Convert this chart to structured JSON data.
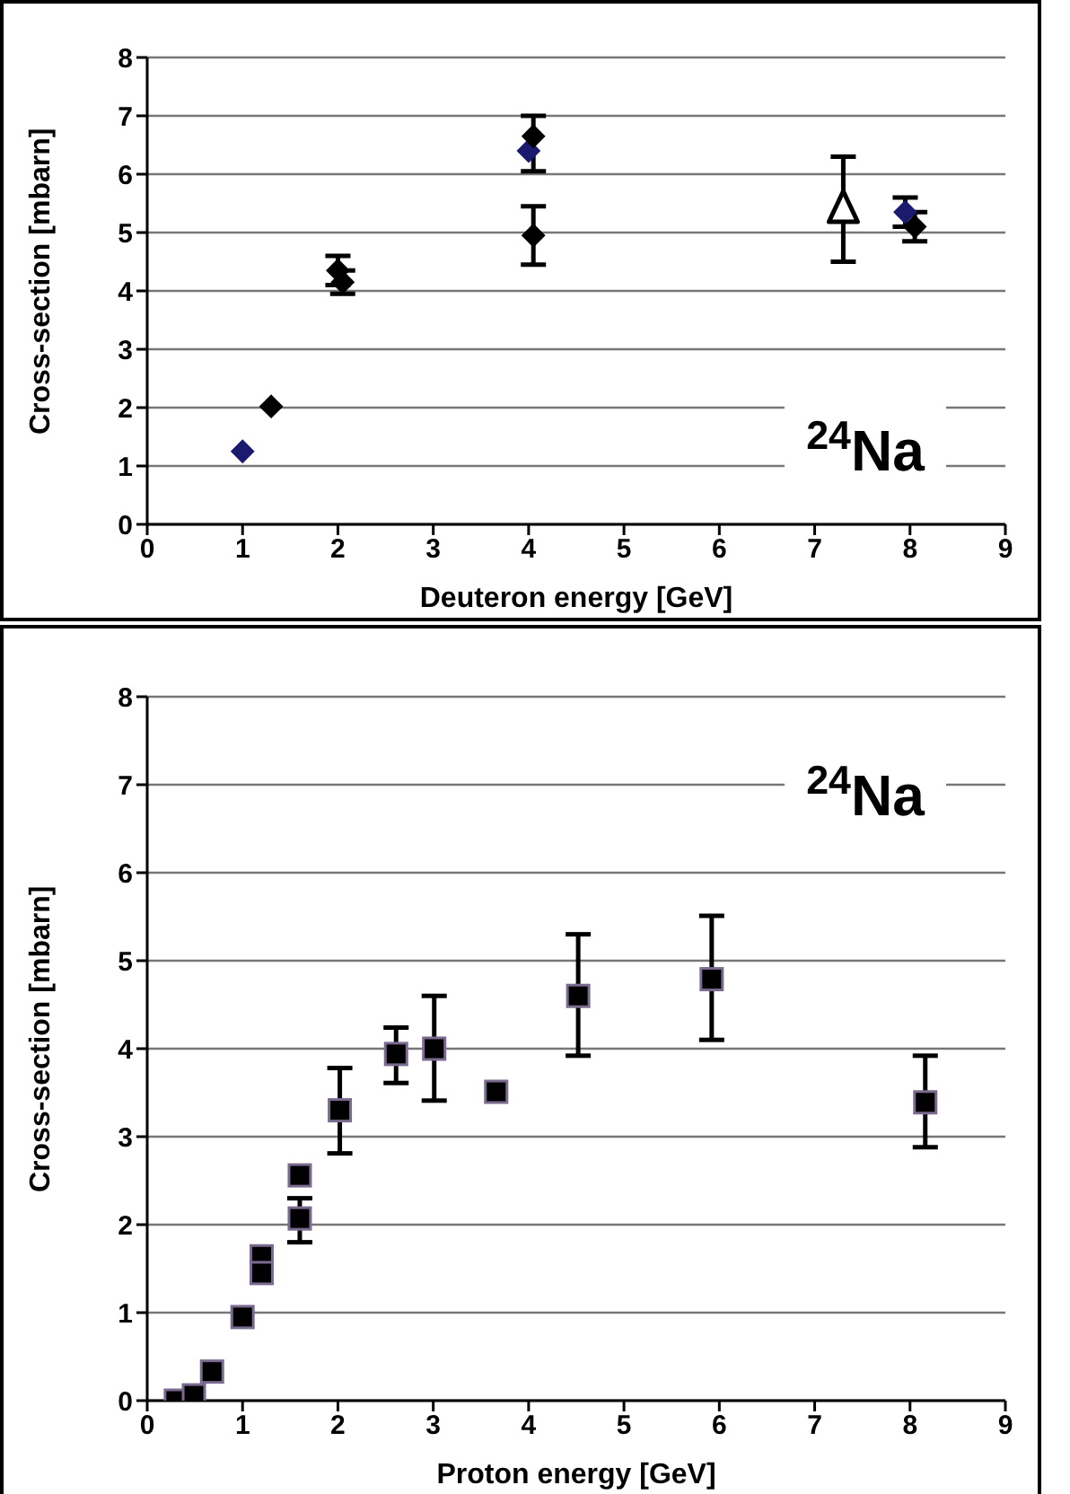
{
  "chart_data": [
    {
      "type": "scatter",
      "xlabel": "Deuteron energy [GeV]",
      "ylabel": "Cross-section [mbarn]",
      "annotations": [
        "$^{24}$Na"
      ],
      "xlim": [
        0,
        9
      ],
      "xticks": [
        0,
        1,
        2,
        3,
        4,
        5,
        6,
        7,
        8,
        9
      ],
      "ylim": [
        0,
        8
      ],
      "yticks": [
        0,
        1,
        2,
        3,
        4,
        5,
        6,
        7,
        8
      ],
      "grid": "y",
      "legend": false,
      "series": [
        {
          "color": "#1a1a6e",
          "marker": "diamond",
          "x": [
            1.0,
            4.0,
            7.95
          ],
          "values": [
            1.25,
            6.4,
            5.35
          ],
          "errors": [
            null,
            null,
            [
              5.1,
              5.6
            ]
          ]
        },
        {
          "color": "#000000",
          "marker": "diamond",
          "x": [
            1.3,
            2.0,
            2.05,
            4.05,
            4.05,
            8.05
          ],
          "values": [
            2.02,
            4.35,
            4.15,
            6.65,
            4.95,
            5.1
          ],
          "errors": [
            null,
            [
              4.1,
              4.6
            ],
            [
              3.95,
              4.35
            ],
            [
              6.05,
              7.0
            ],
            [
              4.45,
              5.45
            ],
            [
              4.85,
              5.35
            ]
          ]
        },
        {
          "color": "#000000",
          "marker": "triangle",
          "x": [
            7.3
          ],
          "values": [
            5.4
          ],
          "errors": [
            [
              4.5,
              6.3
            ]
          ]
        }
      ]
    },
    {
      "type": "scatter",
      "xlabel": "Proton energy [GeV]",
      "ylabel": "Cross-section [mbarn]",
      "annotations": [
        "$^{24}$Na"
      ],
      "xlim": [
        0,
        9
      ],
      "xticks": [
        0,
        1,
        2,
        3,
        4,
        5,
        6,
        7,
        8,
        9
      ],
      "ylim": [
        0,
        8
      ],
      "yticks": [
        0,
        1,
        2,
        3,
        4,
        5,
        6,
        7,
        8
      ],
      "grid": "y",
      "legend": false,
      "series": [
        {
          "color": "#000000",
          "marker": "square",
          "x": [
            0.3,
            0.49,
            0.68,
            1.0,
            1.2,
            1.2,
            1.6,
            1.6,
            2.02,
            2.61,
            3.01,
            3.66,
            4.52,
            5.92,
            8.16
          ],
          "values": [
            0.0,
            0.06,
            0.33,
            0.95,
            1.64,
            1.45,
            2.56,
            2.07,
            3.3,
            3.94,
            4.0,
            3.51,
            4.6,
            4.79,
            3.39
          ],
          "errors": [
            null,
            null,
            null,
            null,
            null,
            null,
            null,
            [
              1.8,
              2.3
            ],
            [
              2.81,
              3.78
            ],
            [
              3.61,
              4.24
            ],
            [
              3.41,
              4.6
            ],
            null,
            [
              3.92,
              5.3
            ],
            [
              4.1,
              5.51
            ],
            [
              2.88,
              3.92
            ]
          ]
        }
      ]
    }
  ]
}
